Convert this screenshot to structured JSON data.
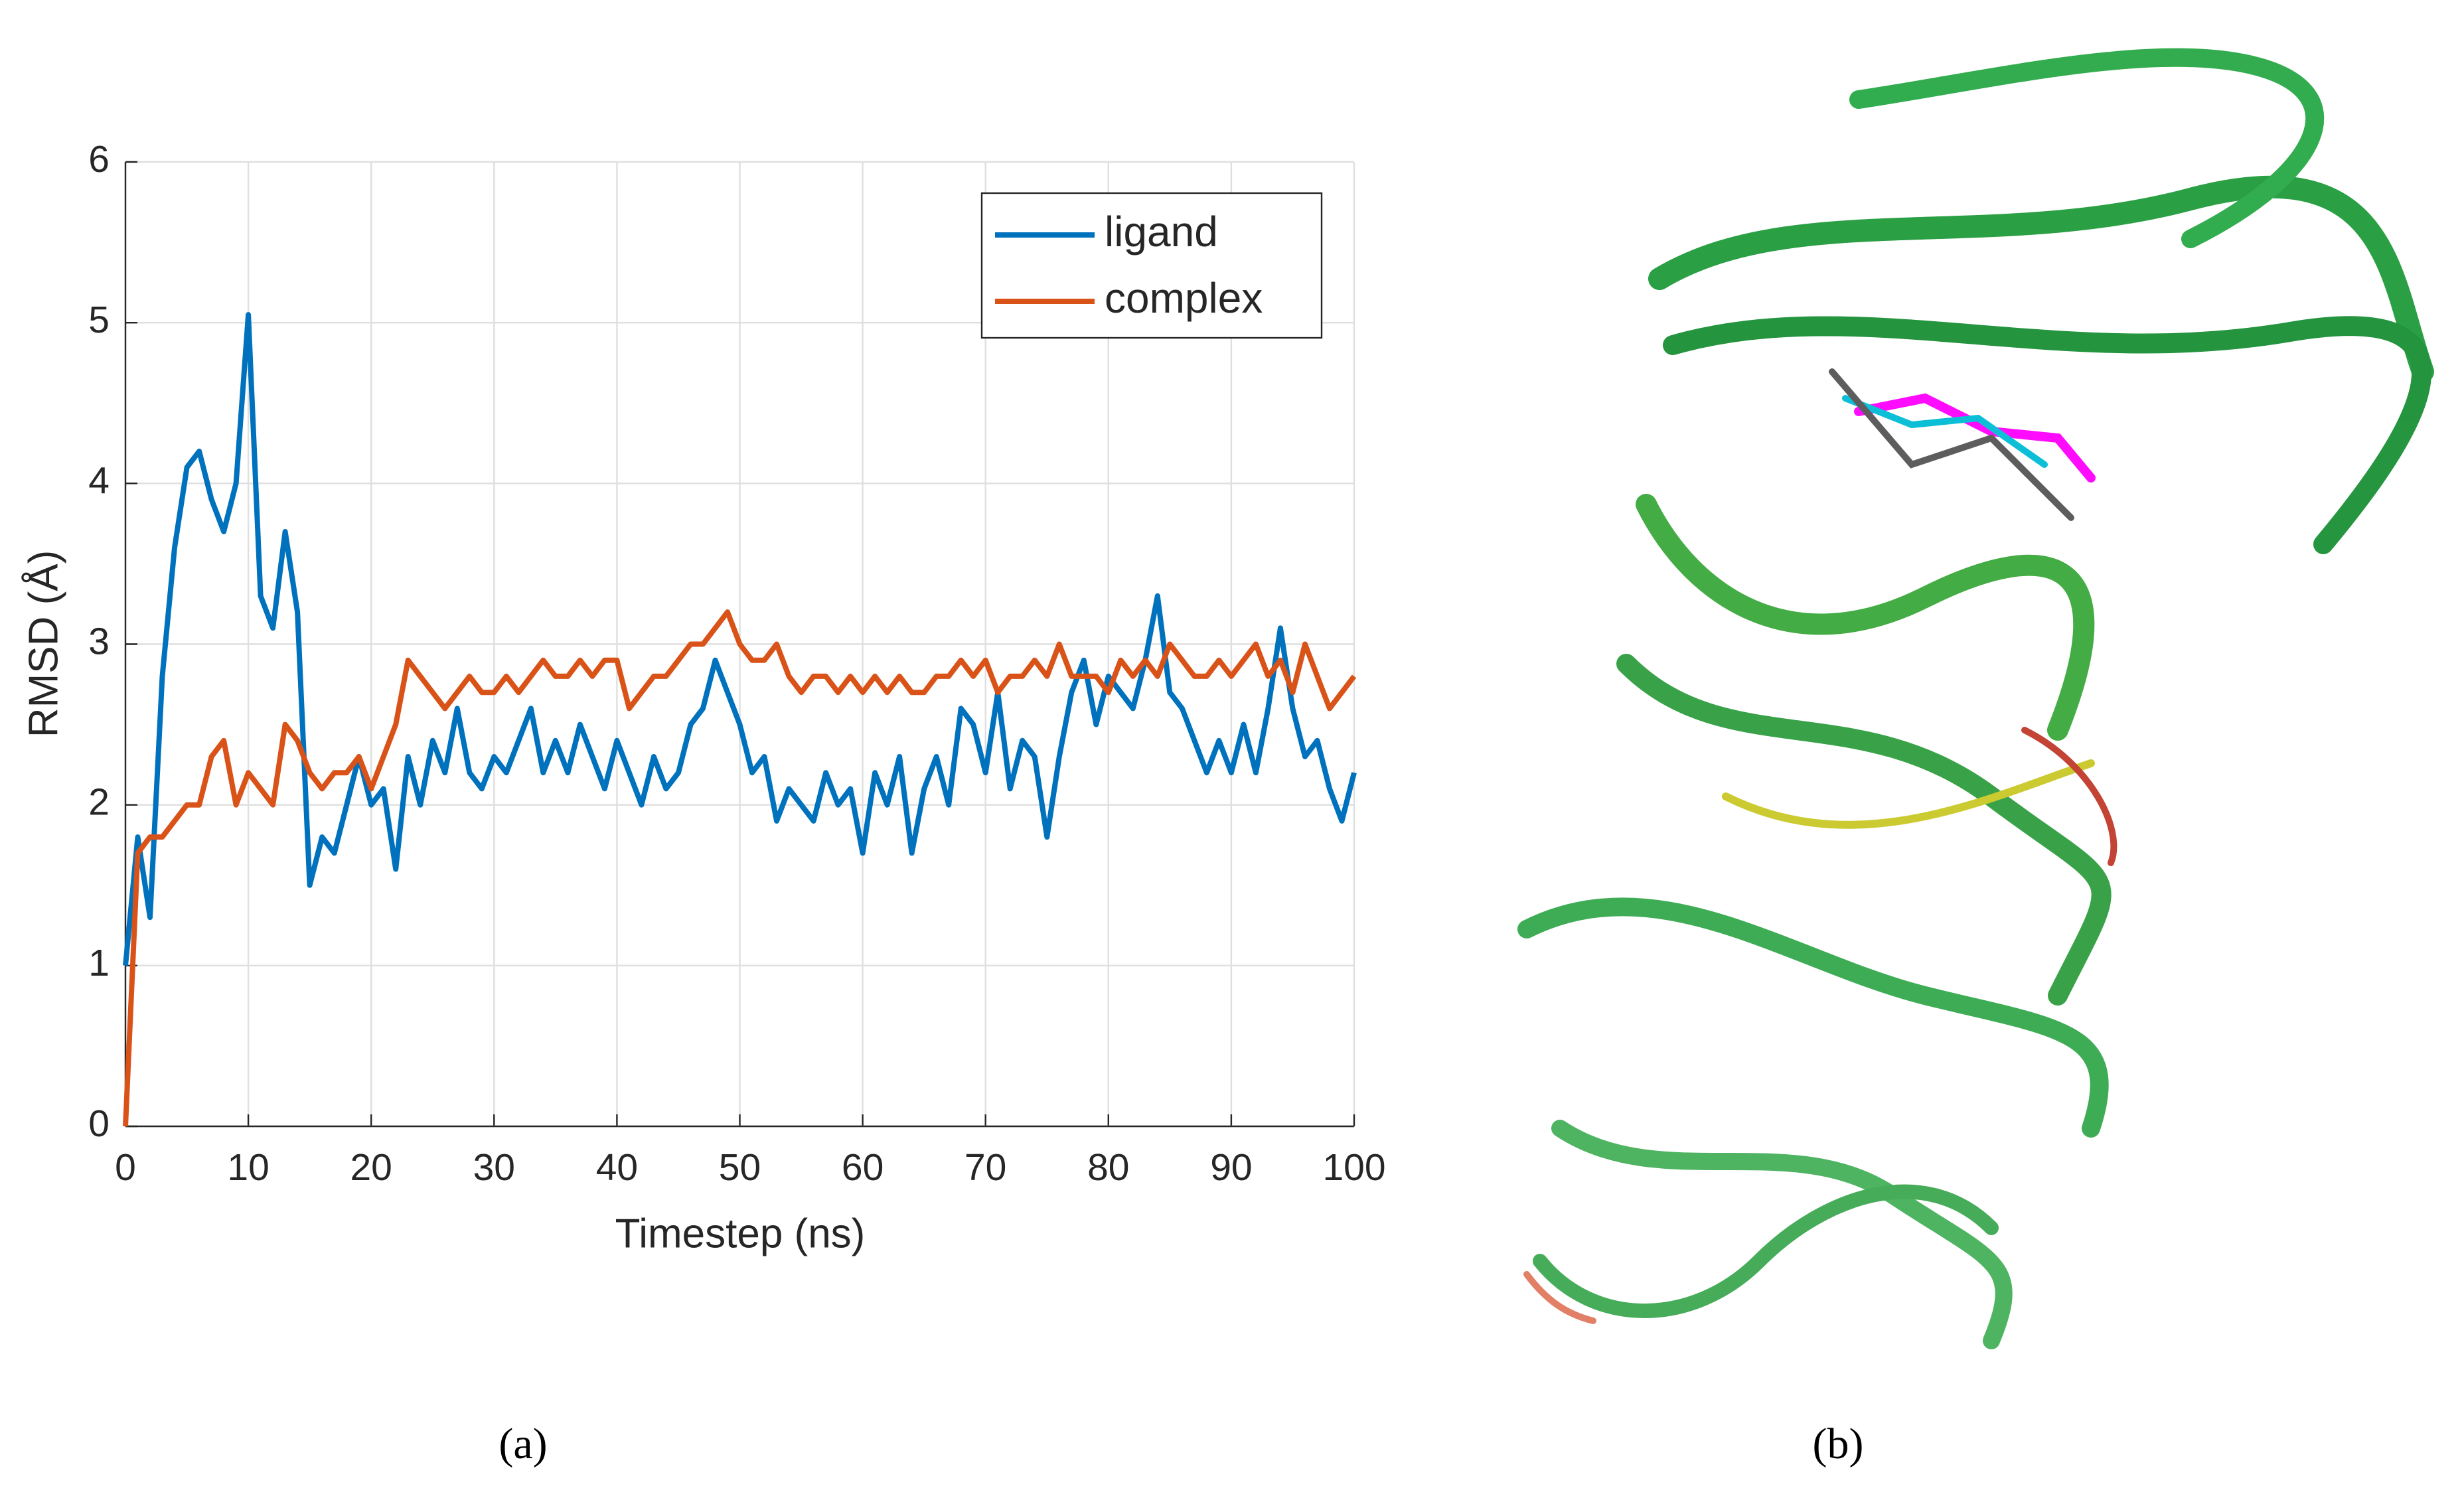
{
  "chart_data": {
    "type": "line",
    "xlabel": "Timestep (ns)",
    "ylabel": "RMSD (Å)",
    "x": [
      0,
      1,
      2,
      3,
      4,
      5,
      6,
      7,
      8,
      9,
      10,
      11,
      12,
      13,
      14,
      15,
      16,
      17,
      18,
      19,
      20,
      21,
      22,
      23,
      24,
      25,
      26,
      27,
      28,
      29,
      30,
      31,
      32,
      33,
      34,
      35,
      36,
      37,
      38,
      39,
      40,
      41,
      42,
      43,
      44,
      45,
      46,
      47,
      48,
      49,
      50,
      51,
      52,
      53,
      54,
      55,
      56,
      57,
      58,
      59,
      60,
      61,
      62,
      63,
      64,
      65,
      66,
      67,
      68,
      69,
      70,
      71,
      72,
      73,
      74,
      75,
      76,
      77,
      78,
      79,
      80,
      81,
      82,
      83,
      84,
      85,
      86,
      87,
      88,
      89,
      90,
      91,
      92,
      93,
      94,
      95,
      96,
      97,
      98,
      99,
      100
    ],
    "series": [
      {
        "name": "ligand",
        "color": "#0072bd",
        "values": [
          1.0,
          1.8,
          1.3,
          2.8,
          3.6,
          4.1,
          4.2,
          3.9,
          3.7,
          4.0,
          5.05,
          3.3,
          3.1,
          3.7,
          3.2,
          1.5,
          1.8,
          1.7,
          2.0,
          2.3,
          2.0,
          2.1,
          1.6,
          2.3,
          2.0,
          2.4,
          2.2,
          2.6,
          2.2,
          2.1,
          2.3,
          2.2,
          2.4,
          2.6,
          2.2,
          2.4,
          2.2,
          2.5,
          2.3,
          2.1,
          2.4,
          2.2,
          2.0,
          2.3,
          2.1,
          2.2,
          2.5,
          2.6,
          2.9,
          2.7,
          2.5,
          2.2,
          2.3,
          1.9,
          2.1,
          2.0,
          1.9,
          2.2,
          2.0,
          2.1,
          1.7,
          2.2,
          2.0,
          2.3,
          1.7,
          2.1,
          2.3,
          2.0,
          2.6,
          2.5,
          2.2,
          2.7,
          2.1,
          2.4,
          2.3,
          1.8,
          2.3,
          2.7,
          2.9,
          2.5,
          2.8,
          2.7,
          2.6,
          2.9,
          3.3,
          2.7,
          2.6,
          2.4,
          2.2,
          2.4,
          2.2,
          2.5,
          2.2,
          2.6,
          3.1,
          2.6,
          2.3,
          2.4,
          2.1,
          1.9,
          2.2
        ]
      },
      {
        "name": "complex",
        "color": "#d95319",
        "values": [
          0,
          1.7,
          1.8,
          1.8,
          1.9,
          2.0,
          2.0,
          2.3,
          2.4,
          2.0,
          2.2,
          2.1,
          2.0,
          2.5,
          2.4,
          2.2,
          2.1,
          2.2,
          2.2,
          2.3,
          2.1,
          2.3,
          2.5,
          2.9,
          2.8,
          2.7,
          2.6,
          2.7,
          2.8,
          2.7,
          2.7,
          2.8,
          2.7,
          2.8,
          2.9,
          2.8,
          2.8,
          2.9,
          2.8,
          2.9,
          2.9,
          2.6,
          2.7,
          2.8,
          2.8,
          2.9,
          3.0,
          3.0,
          3.1,
          3.2,
          3.0,
          2.9,
          2.9,
          3.0,
          2.8,
          2.7,
          2.8,
          2.8,
          2.7,
          2.8,
          2.7,
          2.8,
          2.7,
          2.8,
          2.7,
          2.7,
          2.8,
          2.8,
          2.9,
          2.8,
          2.9,
          2.7,
          2.8,
          2.8,
          2.9,
          2.8,
          3.0,
          2.8,
          2.8,
          2.8,
          2.7,
          2.9,
          2.8,
          2.9,
          2.8,
          3.0,
          2.9,
          2.8,
          2.8,
          2.9,
          2.8,
          2.9,
          3.0,
          2.8,
          2.9,
          2.7,
          3.0,
          2.8,
          2.6,
          2.7,
          2.8
        ]
      }
    ],
    "xlim": [
      0,
      100
    ],
    "xticks": [
      0,
      10,
      20,
      30,
      40,
      50,
      60,
      70,
      80,
      90,
      100
    ],
    "ylim": [
      0,
      6
    ],
    "yticks": [
      0,
      1,
      2,
      3,
      4,
      5,
      6
    ],
    "grid": true,
    "legend": "northeast"
  },
  "panel_labels": [
    "(a)",
    "(b)"
  ]
}
